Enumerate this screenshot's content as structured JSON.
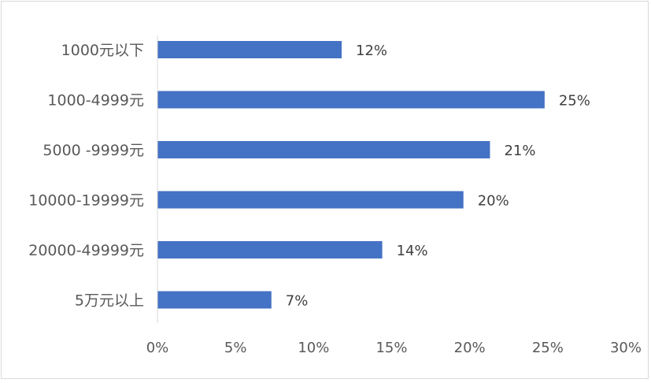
{
  "chart_data": {
    "type": "bar",
    "orientation": "horizontal",
    "title": "",
    "xlabel": "",
    "ylabel": "",
    "categories": [
      "1000元以下",
      "1000-4999元",
      "5000 -9999元",
      "10000-19999元",
      "20000-49999元",
      "5万元以上"
    ],
    "values": [
      11.8,
      24.8,
      21.3,
      19.6,
      14.4,
      7.3
    ],
    "data_labels": [
      "12%",
      "25%",
      "21%",
      "20%",
      "14%",
      "7%"
    ],
    "xlim": [
      0,
      30
    ],
    "x_ticks": [
      0,
      5,
      10,
      15,
      20,
      25,
      30
    ],
    "x_tick_labels": [
      "0%",
      "5%",
      "10%",
      "15%",
      "20%",
      "25%",
      "30%"
    ],
    "grid": false,
    "legend": "none",
    "bar_color": "#4472c4",
    "axis_color": "#d9d9d9"
  }
}
